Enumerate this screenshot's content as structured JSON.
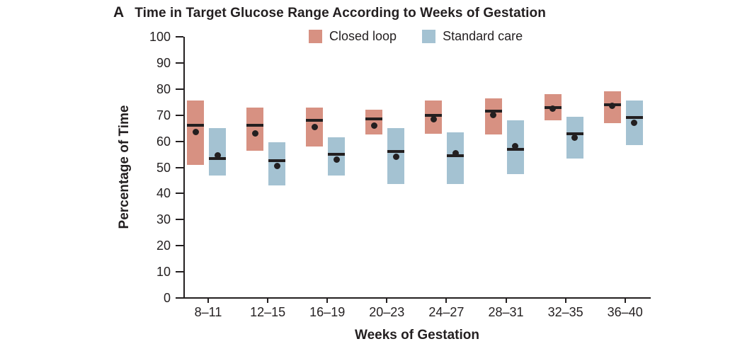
{
  "figure": {
    "panel_label": "A"
  },
  "colors": {
    "text": "#231F20",
    "axis": "#231F20",
    "median_line": "#231F20",
    "mean_dot": "#231F20",
    "background": "#FFFFFF",
    "closed_loop": "#D79182",
    "standard_care": "#A4C2D2"
  },
  "chart_data": {
    "type": "box",
    "title": "Time in Target Glucose Range According to Weeks of Gestation",
    "xlabel": "Weeks of Gestation",
    "ylabel": "Percentage of Time",
    "ylim": [
      0,
      100
    ],
    "yticks": [
      0,
      10,
      20,
      30,
      40,
      50,
      60,
      70,
      80,
      90,
      100
    ],
    "categories": [
      "8–11",
      "12–15",
      "16–19",
      "20–23",
      "24–27",
      "28–31",
      "32–35",
      "36–40"
    ],
    "grid": false,
    "legend_position": "top-center",
    "box_semantics": "box spans interquartile-style range (low–high), thick bar = median, dot = mean",
    "series": [
      {
        "name": "Closed loop",
        "color": "#D79182",
        "boxes": [
          {
            "low": 51,
            "median": 66,
            "mean": 63.5,
            "high": 75.5
          },
          {
            "low": 56.5,
            "median": 66,
            "mean": 63,
            "high": 73
          },
          {
            "low": 58,
            "median": 68,
            "mean": 65.5,
            "high": 73
          },
          {
            "low": 62.5,
            "median": 68.5,
            "mean": 66,
            "high": 72
          },
          {
            "low": 63,
            "median": 70,
            "mean": 68.5,
            "high": 75.5
          },
          {
            "low": 62.5,
            "median": 71.5,
            "mean": 70,
            "high": 76.5
          },
          {
            "low": 68,
            "median": 73,
            "mean": 72.5,
            "high": 78
          },
          {
            "low": 67,
            "median": 74,
            "mean": 73.5,
            "high": 79
          }
        ]
      },
      {
        "name": "Standard care",
        "color": "#A4C2D2",
        "boxes": [
          {
            "low": 47,
            "median": 53.5,
            "mean": 54.5,
            "high": 65
          },
          {
            "low": 43,
            "median": 52.5,
            "mean": 50.5,
            "high": 59.5
          },
          {
            "low": 47,
            "median": 55,
            "mean": 53,
            "high": 61.5
          },
          {
            "low": 43.5,
            "median": 56,
            "mean": 54,
            "high": 65
          },
          {
            "low": 43.5,
            "median": 54.5,
            "mean": 55.5,
            "high": 63.5
          },
          {
            "low": 47.5,
            "median": 57,
            "mean": 58,
            "high": 68
          },
          {
            "low": 53.5,
            "median": 63,
            "mean": 61.5,
            "high": 69.5
          },
          {
            "low": 58.5,
            "median": 69,
            "mean": 67,
            "high": 75.5
          }
        ]
      }
    ]
  }
}
